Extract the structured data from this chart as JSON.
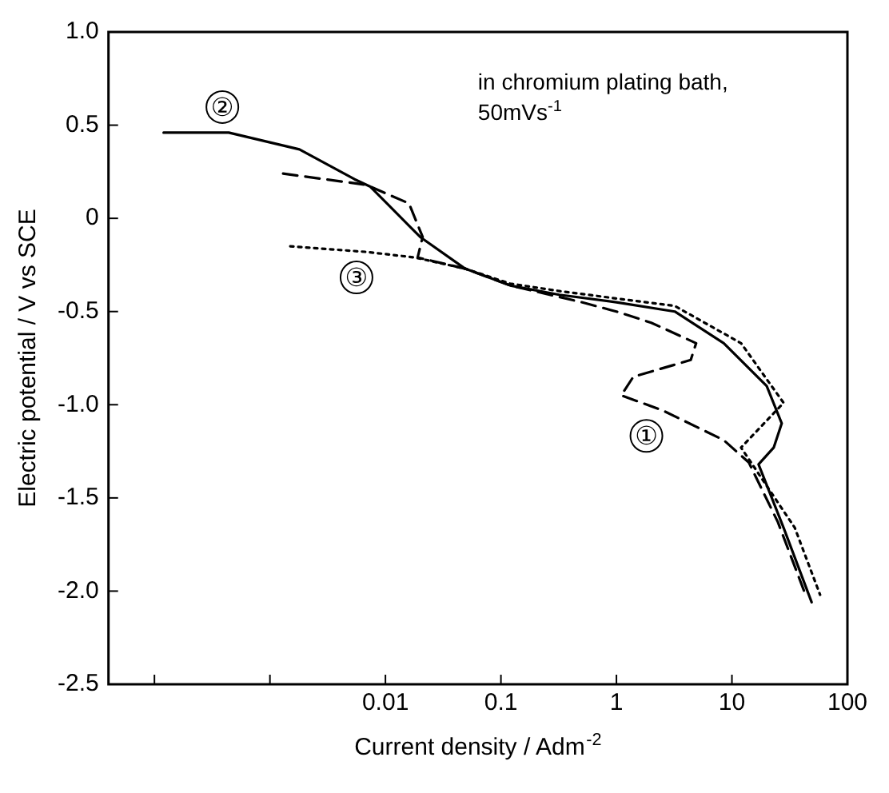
{
  "chart_data": {
    "type": "line",
    "xlabel": "Current density / Adm$^{-2}$",
    "ylabel": "Electric potential / V vs SCE",
    "log": "x",
    "xlim": [
      4e-05,
      100
    ],
    "xticks": [
      {
        "value": 0.0001,
        "label": null
      },
      {
        "value": 0.001,
        "label": null
      },
      0.01,
      0.1,
      1,
      10,
      100
    ],
    "ylim": [
      -2.5,
      1.0
    ],
    "yticks": [
      {
        "value": 1,
        "label": "1.0"
      },
      0.5,
      0,
      -0.5,
      {
        "value": -1,
        "label": "-1.0"
      },
      -1.5,
      {
        "value": -2,
        "label": "-2.0"
      },
      -2.5
    ],
    "grid": false,
    "legend": false,
    "marker": "none",
    "annotations": [
      "in chromium plating bath, 50mVs$^{-1}$"
    ],
    "series": [
      {
        "name": "①",
        "color": "#000000",
        "line_style": "dashed",
        "x": [
          0.0013,
          0.0068,
          0.016,
          0.021,
          0.019,
          0.049,
          0.12,
          0.5,
          1,
          2,
          4.9,
          4.4,
          1.4,
          1.1,
          2.5,
          8.5,
          14,
          25,
          44
        ],
        "values": [
          0.24,
          0.18,
          0.08,
          -0.1,
          -0.21,
          -0.27,
          -0.36,
          -0.45,
          -0.5,
          -0.56,
          -0.67,
          -0.76,
          -0.85,
          -0.95,
          -1.03,
          -1.19,
          -1.31,
          -1.63,
          -2.03
        ]
      },
      {
        "name": "②",
        "color": "#000000",
        "line_style": "solid",
        "x": [
          0.00012,
          0.00044,
          0.0018,
          0.0054,
          0.0074,
          0.02,
          0.049,
          0.12,
          0.32,
          1,
          3.2,
          8.5,
          20,
          27,
          23,
          17,
          28,
          49
        ],
        "values": [
          0.46,
          0.46,
          0.37,
          0.21,
          0.17,
          -0.1,
          -0.27,
          -0.36,
          -0.41,
          -0.45,
          -0.5,
          -0.67,
          -0.9,
          -1.1,
          -1.23,
          -1.32,
          -1.66,
          -2.06
        ]
      },
      {
        "name": "③",
        "color": "#000000",
        "line_style": "dotted",
        "x": [
          0.0015,
          0.0068,
          0.018,
          0.049,
          0.12,
          0.32,
          1,
          3.2,
          12,
          28,
          12,
          35,
          58
        ],
        "values": [
          -0.15,
          -0.18,
          -0.21,
          -0.27,
          -0.35,
          -0.39,
          -0.43,
          -0.47,
          -0.67,
          -0.99,
          -1.23,
          -1.66,
          -2.02
        ]
      }
    ]
  }
}
